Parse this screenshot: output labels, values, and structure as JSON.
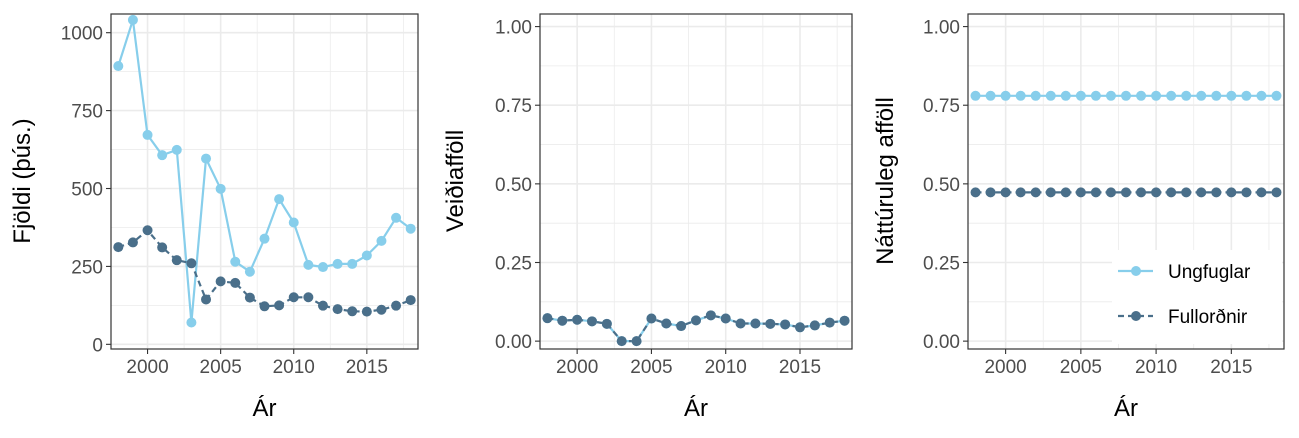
{
  "colors": {
    "young": "#87ceeb",
    "adult": "#4a6f8a",
    "grid": "#ebebeb",
    "axis_text": "#4d4d4d",
    "title_text": "#000000",
    "panel_border": "#333333"
  },
  "chart_data": [
    {
      "type": "line",
      "xlabel": "Ár",
      "ylabel": "Fjöldi (þús.)",
      "xlim": [
        1997.5,
        2018.5
      ],
      "ylim": [
        -15,
        1060
      ],
      "xticks": [
        2000,
        2005,
        2010,
        2015
      ],
      "xtick_labels": [
        "2000",
        "2005",
        "2010",
        "2015"
      ],
      "yticks": [
        0,
        250,
        500,
        750,
        1000
      ],
      "ytick_labels": [
        "0",
        "250",
        "500",
        "750",
        "1000"
      ],
      "grid": true,
      "x": [
        1998,
        1999,
        2000,
        2001,
        2002,
        2003,
        2004,
        2005,
        2006,
        2007,
        2008,
        2009,
        2010,
        2011,
        2012,
        2013,
        2014,
        2015,
        2016,
        2017,
        2018
      ],
      "series": [
        {
          "name": "Ungfuglar",
          "color": "#87ceeb",
          "dash": "solid",
          "values": [
            893,
            1041,
            672,
            607,
            624,
            70,
            596,
            499,
            265,
            233,
            339,
            466,
            391,
            255,
            248,
            258,
            258,
            285,
            332,
            406,
            371
          ]
        },
        {
          "name": "Fullorðnir",
          "color": "#4a6f8a",
          "dash": "dashed",
          "values": [
            312,
            327,
            366,
            311,
            270,
            260,
            144,
            202,
            197,
            150,
            122,
            125,
            151,
            151,
            124,
            113,
            106,
            105,
            111,
            124,
            142
          ]
        }
      ]
    },
    {
      "type": "line",
      "xlabel": "Ár",
      "ylabel": "Veiðiafföll",
      "xlim": [
        1997.5,
        2018.5
      ],
      "ylim": [
        -0.025,
        1.04
      ],
      "xticks": [
        2000,
        2005,
        2010,
        2015
      ],
      "xtick_labels": [
        "2000",
        "2005",
        "2010",
        "2015"
      ],
      "yticks": [
        0,
        0.25,
        0.5,
        0.75,
        1.0
      ],
      "ytick_labels": [
        "0.00",
        "0.25",
        "0.50",
        "0.75",
        "1.00"
      ],
      "grid": true,
      "x": [
        1998,
        1999,
        2000,
        2001,
        2002,
        2003,
        2004,
        2005,
        2006,
        2007,
        2008,
        2009,
        2010,
        2011,
        2012,
        2013,
        2014,
        2015,
        2016,
        2017,
        2018
      ],
      "series": [
        {
          "name": "Ungfuglar",
          "color": "#87ceeb",
          "dash": "solid",
          "values": [
            0.073,
            0.065,
            0.068,
            0.063,
            0.055,
            0.0,
            0.0,
            0.072,
            0.056,
            0.048,
            0.066,
            0.082,
            0.072,
            0.056,
            0.056,
            0.055,
            0.053,
            0.044,
            0.05,
            0.059,
            0.065
          ]
        },
        {
          "name": "Fullorðnir",
          "color": "#4a6f8a",
          "dash": "dashed",
          "values": [
            0.073,
            0.065,
            0.068,
            0.063,
            0.055,
            0.0,
            0.0,
            0.072,
            0.056,
            0.048,
            0.066,
            0.082,
            0.072,
            0.056,
            0.056,
            0.055,
            0.053,
            0.044,
            0.05,
            0.059,
            0.065
          ]
        }
      ]
    },
    {
      "type": "line",
      "xlabel": "Ár",
      "ylabel": "Náttúruleg afföll",
      "xlim": [
        1997.5,
        2018.5
      ],
      "ylim": [
        -0.025,
        1.04
      ],
      "xticks": [
        2000,
        2005,
        2010,
        2015
      ],
      "xtick_labels": [
        "2000",
        "2005",
        "2010",
        "2015"
      ],
      "yticks": [
        0,
        0.25,
        0.5,
        0.75,
        1.0
      ],
      "ytick_labels": [
        "0.00",
        "0.25",
        "0.50",
        "0.75",
        "1.00"
      ],
      "grid": true,
      "legend": "bottom-right",
      "legend_labels": [
        "Ungfuglar",
        "Fullorðnir"
      ],
      "x": [
        1998,
        1999,
        2000,
        2001,
        2002,
        2003,
        2004,
        2005,
        2006,
        2007,
        2008,
        2009,
        2010,
        2011,
        2012,
        2013,
        2014,
        2015,
        2016,
        2017,
        2018
      ],
      "series": [
        {
          "name": "Ungfuglar",
          "color": "#87ceeb",
          "dash": "solid",
          "values": [
            0.78,
            0.78,
            0.78,
            0.78,
            0.78,
            0.78,
            0.78,
            0.78,
            0.78,
            0.78,
            0.78,
            0.78,
            0.78,
            0.78,
            0.78,
            0.78,
            0.78,
            0.78,
            0.78,
            0.78,
            0.78
          ]
        },
        {
          "name": "Fullorðnir",
          "color": "#4a6f8a",
          "dash": "dashed",
          "values": [
            0.473,
            0.473,
            0.473,
            0.473,
            0.473,
            0.473,
            0.473,
            0.473,
            0.473,
            0.473,
            0.473,
            0.473,
            0.473,
            0.473,
            0.473,
            0.473,
            0.473,
            0.473,
            0.473,
            0.473,
            0.473
          ]
        }
      ]
    }
  ]
}
